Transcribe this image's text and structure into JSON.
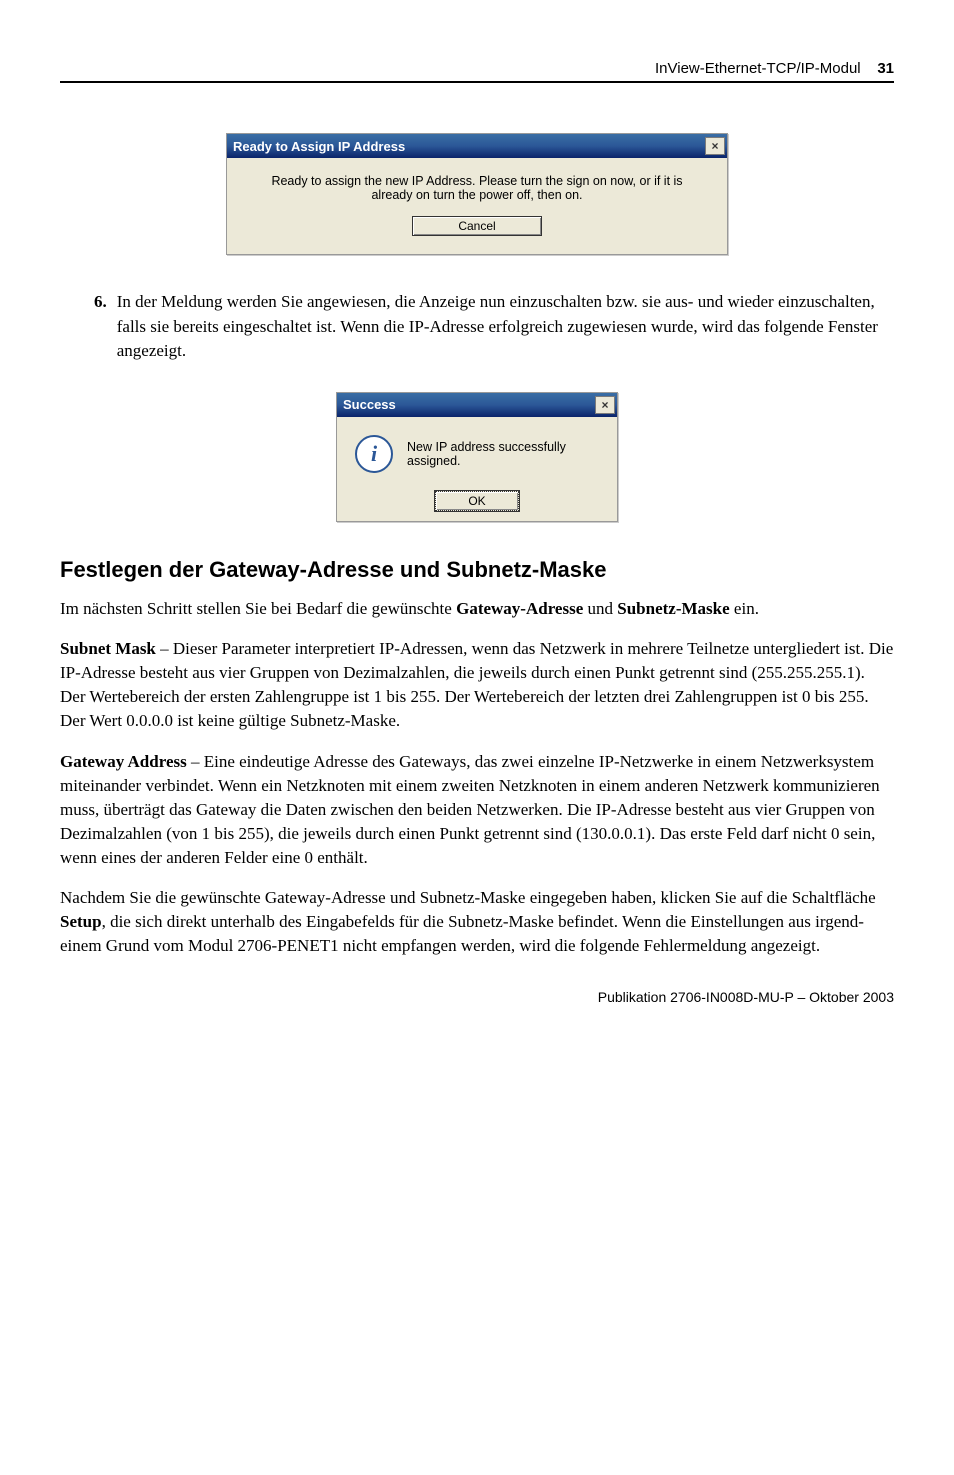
{
  "header": {
    "doc_title": "InView-Ethernet-TCP/IP-Modul",
    "page_number": "31"
  },
  "dialog_ip": {
    "title": "Ready to Assign IP Address",
    "message": "Ready to assign the new IP Address.  Please turn the sign on now, or if it is already on turn the power off, then on.",
    "cancel": "Cancel"
  },
  "step6": {
    "num": "6.",
    "text": "In der Meldung werden Sie angewiesen, die Anzeige nun einzuschalten bzw. sie aus- und wieder einzuschalten, falls sie bereits eingeschaltet ist. Wenn die IP-Adresse erfolgreich zugewiesen wurde, wird das folgende Fenster angezeigt."
  },
  "dialog_success": {
    "title": "Success",
    "message": "New IP address successfully assigned.",
    "ok": "OK"
  },
  "section_heading": "Festlegen der Gateway-Adresse und Subnetz-Maske",
  "intro": {
    "p1a": "Im nächsten Schritt stellen Sie bei Bedarf die gewünschte ",
    "p1b": "Gateway-Adresse",
    "p1c": " und ",
    "p1d": "Subnetz-Maske",
    "p1e": " ein."
  },
  "subnet": {
    "label": "Subnet Mask",
    "text": " – Dieser Parameter interpretiert IP-Adressen, wenn das Netzwerk in mehrere Teilnetze untergliedert ist. Die IP-Adresse besteht aus vier Gruppen von Dezimalzahlen, die jeweils durch einen Punkt getrennt sind (255.255.255.1). Der Wertebereich der ersten Zahlengruppe ist 1 bis 255. Der Wertebereich der letzten drei Zahlengruppen ist 0 bis 255. Der Wert 0.0.0.0 ist keine gültige Subnetz-Maske."
  },
  "gateway": {
    "label": "Gateway Address",
    "text": " – Eine eindeutige Adresse des Gateways, das zwei einzelne IP-Netzwerke in einem Netzwerksystem miteinander verbindet. Wenn ein Netzknoten mit einem zweiten Netzknoten in einem anderen Netzwerk kommunizieren muss, überträgt das Gateway die Daten zwischen den beiden Netzwerken. Die IP-Adresse besteht aus vier Gruppen von Dezimalzahlen (von 1 bis 255), die jeweils durch einen Punkt getrennt sind (130.0.0.1). Das erste Feld darf nicht 0 sein, wenn eines der anderen Felder eine 0 enthält."
  },
  "final": {
    "a": "Nachdem Sie die gewünschte Gateway-Adresse und Subnetz-Maske eingegeben haben, klicken Sie auf die Schaltfläche ",
    "b": "Setup",
    "c": ", die sich direkt unterhalb des Eingabefelds für die Subnetz-Maske befindet. Wenn die Einstellungen aus irgend­einem Grund vom Modul 2706-PENET1 nicht empfangen werden, wird die folgende Fehlermeldung angezeigt."
  },
  "footer": "Publikation 2706-IN008D-MU-P – Oktober 2003"
}
